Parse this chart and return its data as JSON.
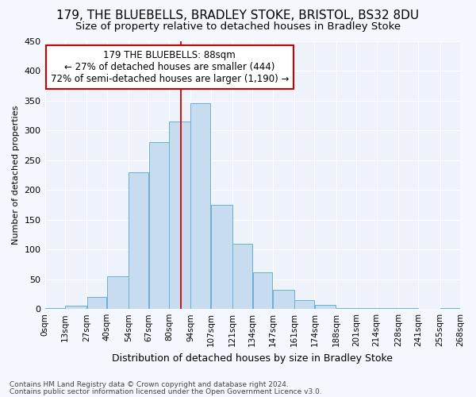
{
  "title1": "179, THE BLUEBELLS, BRADLEY STOKE, BRISTOL, BS32 8DU",
  "title2": "Size of property relative to detached houses in Bradley Stoke",
  "xlabel": "Distribution of detached houses by size in Bradley Stoke",
  "ylabel": "Number of detached properties",
  "footnote1": "Contains HM Land Registry data © Crown copyright and database right 2024.",
  "footnote2": "Contains public sector information licensed under the Open Government Licence v3.0.",
  "annotation_line1": "179 THE BLUEBELLS: 88sqm",
  "annotation_line2": "← 27% of detached houses are smaller (444)",
  "annotation_line3": "72% of semi-detached houses are larger (1,190) →",
  "property_size": 88,
  "bar_left_edges": [
    0,
    13,
    27,
    40,
    54,
    67,
    80,
    94,
    107,
    121,
    134,
    147,
    161,
    174,
    188,
    201,
    214,
    228,
    241,
    255
  ],
  "bar_widths": [
    13,
    14,
    13,
    14,
    13,
    13,
    14,
    13,
    14,
    13,
    13,
    14,
    13,
    14,
    13,
    13,
    14,
    13,
    14,
    13
  ],
  "bar_heights": [
    2,
    6,
    20,
    55,
    230,
    280,
    315,
    345,
    175,
    110,
    62,
    32,
    15,
    7,
    2,
    1,
    2,
    1,
    0,
    2
  ],
  "tick_labels": [
    "0sqm",
    "13sqm",
    "27sqm",
    "40sqm",
    "54sqm",
    "67sqm",
    "80sqm",
    "94sqm",
    "107sqm",
    "121sqm",
    "134sqm",
    "147sqm",
    "161sqm",
    "174sqm",
    "188sqm",
    "201sqm",
    "214sqm",
    "228sqm",
    "241sqm",
    "255sqm",
    "268sqm"
  ],
  "bar_color": "#c8dcf0",
  "bar_edge_color": "#6baed6",
  "bg_color": "#edf2fb",
  "grid_color": "#ffffff",
  "fig_bg_color": "#f5f7fe",
  "annotation_box_color": "#ffffff",
  "annotation_box_edge": "#cc0000",
  "vline_color": "#cc0000",
  "ylim": [
    0,
    450
  ],
  "yticks": [
    0,
    50,
    100,
    150,
    200,
    250,
    300,
    350,
    400,
    450
  ],
  "title1_fontsize": 11,
  "title2_fontsize": 9.5,
  "xlabel_fontsize": 9,
  "ylabel_fontsize": 8,
  "tick_fontsize": 7.5,
  "annot_fontsize": 8.5,
  "footnote_fontsize": 6.5
}
